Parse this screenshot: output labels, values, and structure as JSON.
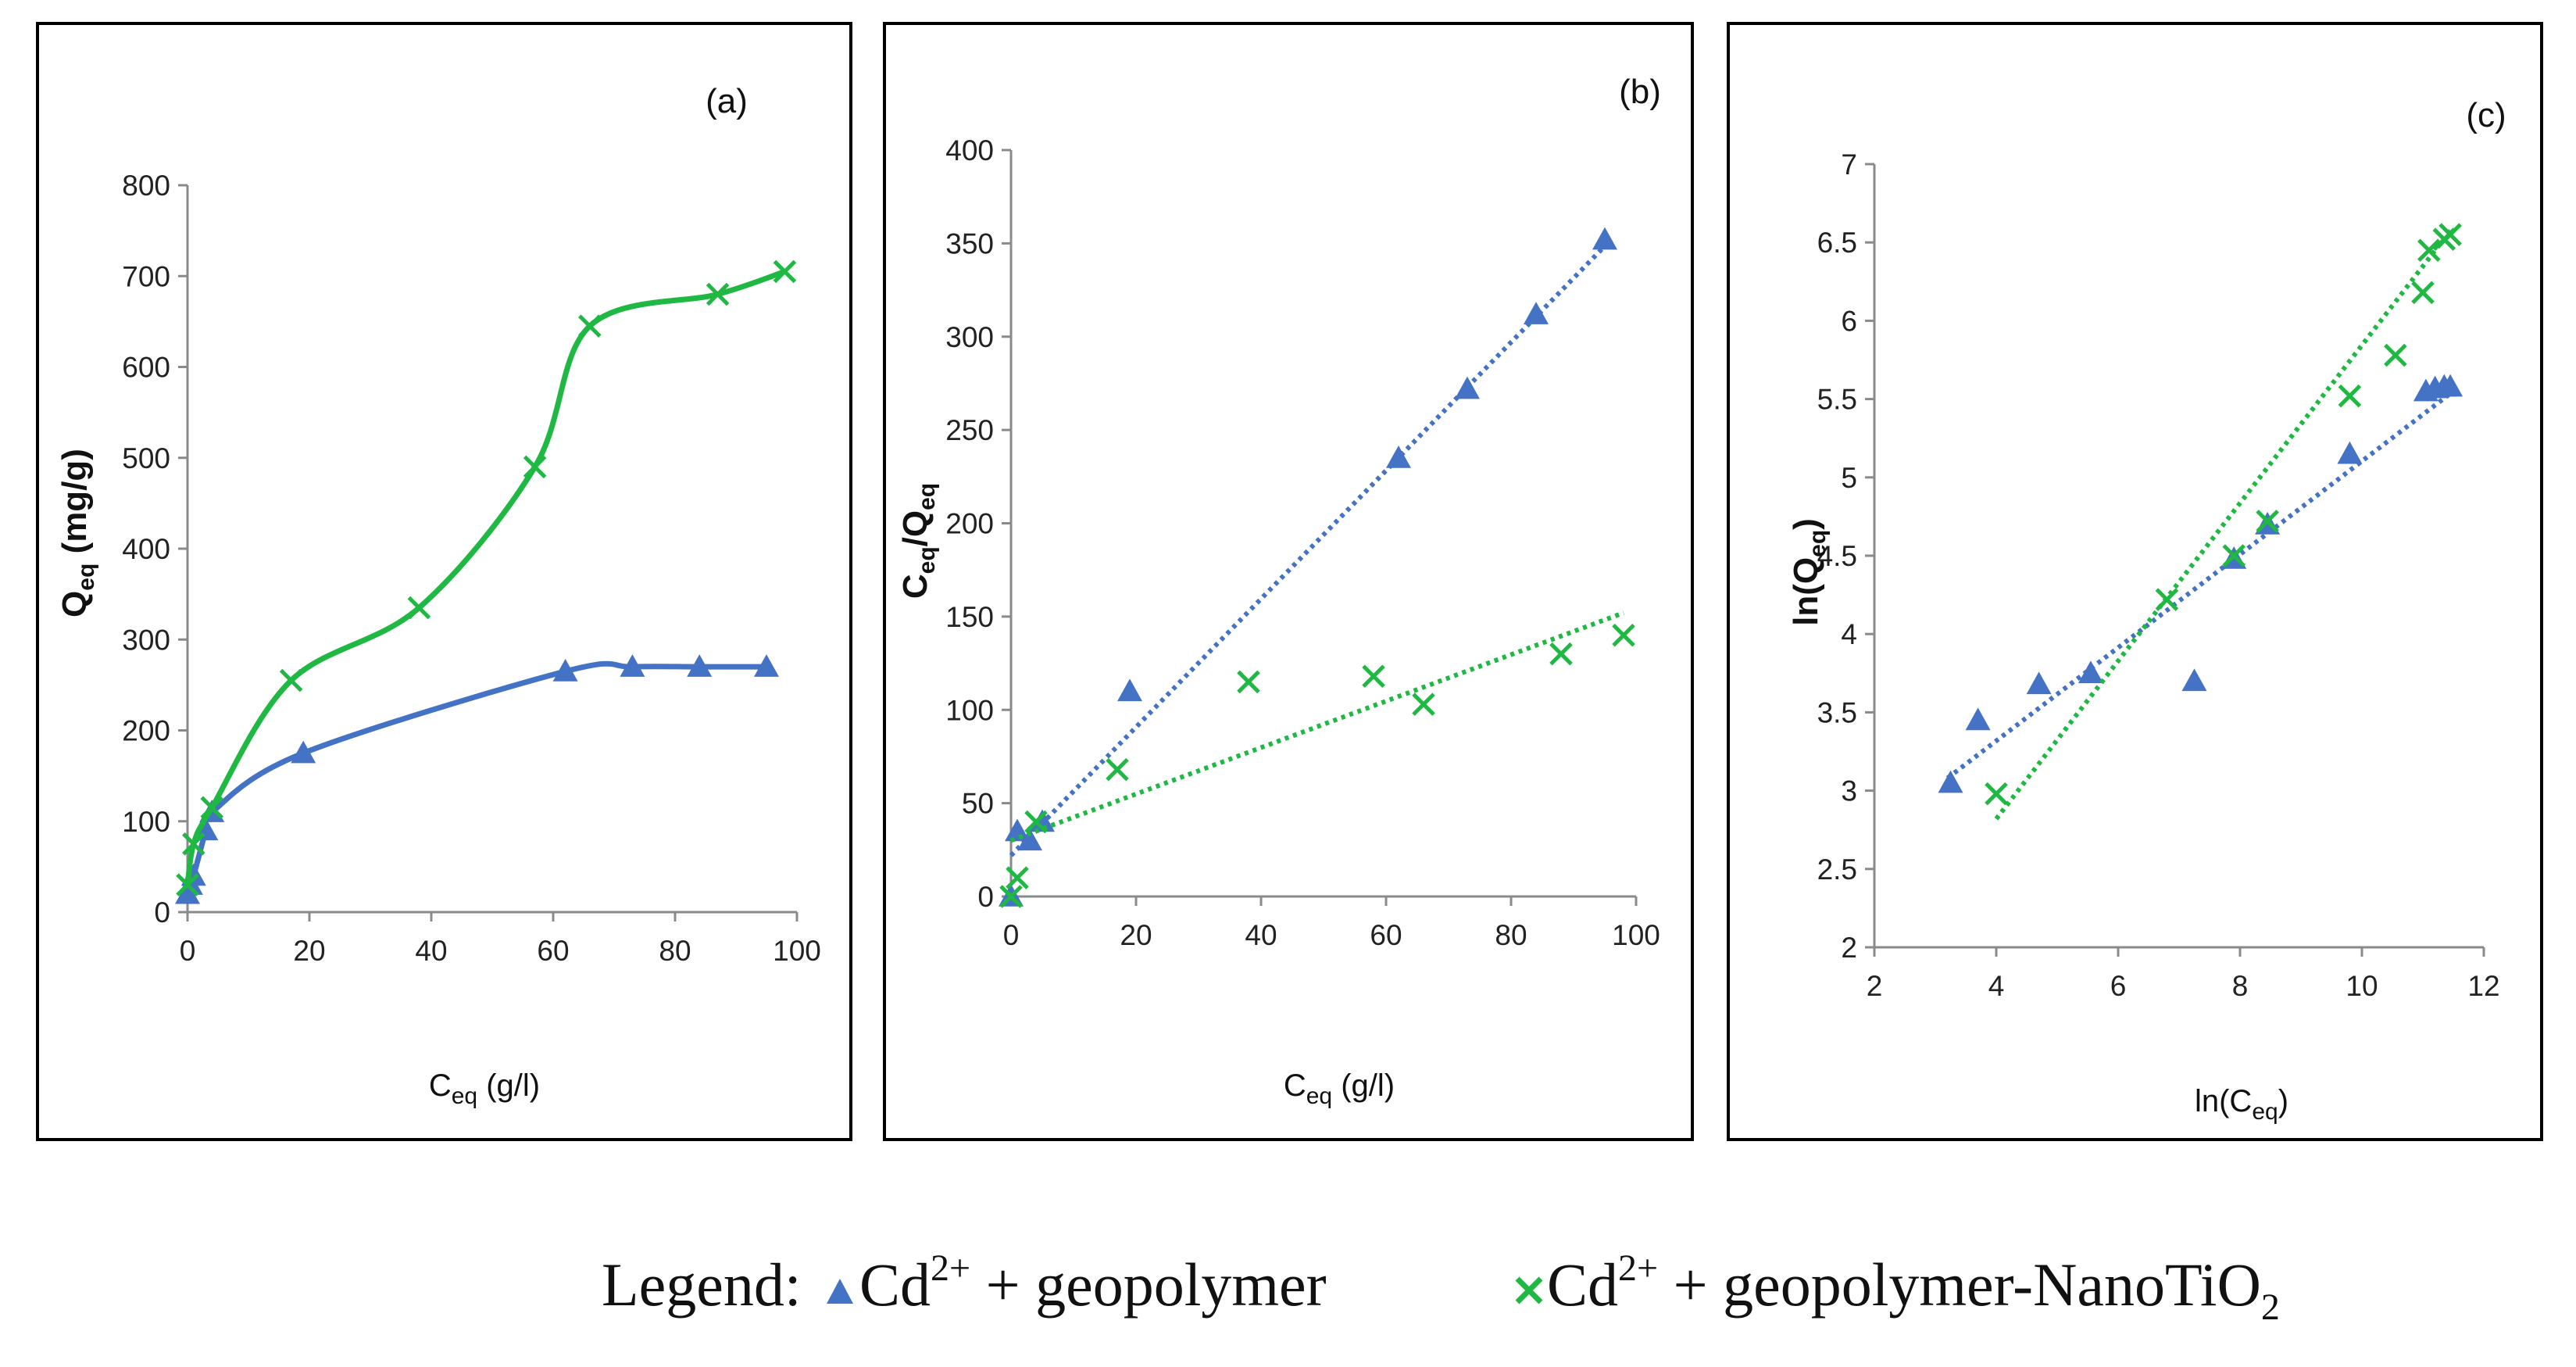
{
  "colors": {
    "series1": "#4472c4",
    "series2": "#1fb843"
  },
  "legend": {
    "title": "Legend:",
    "s1_main": "Cd",
    "s1_sup": "2+",
    "s1_rest": " + geopolymer",
    "s2_main": "Cd",
    "s2_sup": "2+",
    "s2_rest": " + geopolymer-NanoTiO",
    "s2_sub": "2"
  },
  "chart_data": [
    {
      "type": "line",
      "panel_label": "(a)",
      "xlabel_main": "C",
      "xlabel_sub": "eq",
      "xlabel_rest": " (g/l)",
      "ylabel_main": "Q",
      "ylabel_sub": "eq",
      "ylabel_rest": " (mg/g)",
      "xlim": [
        0,
        100
      ],
      "ylim": [
        0,
        800
      ],
      "xticks": [
        0,
        20,
        40,
        60,
        80,
        100
      ],
      "yticks": [
        0,
        100,
        200,
        300,
        400,
        500,
        600,
        700,
        800
      ],
      "series": [
        {
          "name": "Cd2+ + geopolymer",
          "marker": "triangle",
          "color": "#4472c4",
          "x": [
            0,
            0.5,
            1,
            3,
            4,
            19,
            62,
            73,
            84,
            95
          ],
          "y": [
            20,
            30,
            40,
            90,
            110,
            175,
            265,
            270,
            270,
            270
          ]
        },
        {
          "name": "Cd2+ + geopolymer-NanoTiO2",
          "marker": "x",
          "color": "#1fb843",
          "x": [
            0,
            1,
            4,
            17,
            38,
            57,
            66,
            87,
            98
          ],
          "y": [
            30,
            75,
            115,
            255,
            335,
            490,
            645,
            680,
            705
          ]
        }
      ],
      "curve_style": "smooth"
    },
    {
      "type": "scatter",
      "panel_label": "(b)",
      "xlabel_main": "C",
      "xlabel_sub": "eq",
      "xlabel_rest": " (g/l)",
      "ylabel_main": "C",
      "ylabel_sub": "eq",
      "ylabel_mid": "/Q",
      "ylabel_sub2": "eq",
      "xlim": [
        0,
        100
      ],
      "ylim": [
        0,
        400
      ],
      "xticks": [
        0,
        20,
        40,
        60,
        80,
        100
      ],
      "yticks": [
        0,
        50,
        100,
        150,
        200,
        250,
        300,
        350,
        400
      ],
      "series": [
        {
          "name": "Cd2+ + geopolymer",
          "marker": "triangle",
          "color": "#4472c4",
          "x": [
            0,
            1,
            3,
            5,
            19,
            62,
            73,
            84,
            95
          ],
          "y": [
            0,
            35,
            30,
            40,
            110,
            235,
            272,
            312,
            352
          ],
          "trend": [
            [
              0,
              22
            ],
            [
              96,
              352
            ]
          ]
        },
        {
          "name": "Cd2+ + geopolymer-NanoTiO2",
          "marker": "x",
          "color": "#1fb843",
          "x": [
            0,
            1,
            4,
            17,
            38,
            58,
            66,
            88,
            98
          ],
          "y": [
            0,
            10,
            40,
            68,
            115,
            118,
            103,
            130,
            140
          ],
          "trend": [
            [
              0,
              30
            ],
            [
              98,
              152
            ]
          ]
        }
      ]
    },
    {
      "type": "scatter",
      "panel_label": "(c)",
      "xlabel_main": "ln(C",
      "xlabel_sub": "eq",
      "xlabel_rest": ")",
      "ylabel_main": "ln(Q",
      "ylabel_sub": "eq",
      "ylabel_rest": ")",
      "xlim": [
        2,
        12
      ],
      "ylim": [
        2,
        7
      ],
      "xticks": [
        2,
        4,
        6,
        8,
        10,
        12
      ],
      "yticks": [
        2,
        2.5,
        3,
        3.5,
        4,
        4.5,
        5,
        5.5,
        6,
        6.5,
        7
      ],
      "series": [
        {
          "name": "Cd2+ + geopolymer",
          "marker": "triangle",
          "color": "#4472c4",
          "x": [
            3.25,
            3.7,
            4.7,
            5.55,
            7.25,
            7.9,
            8.45,
            9.8,
            11.05,
            11.2,
            11.35,
            11.45
          ],
          "y": [
            3.05,
            3.45,
            3.68,
            3.75,
            3.7,
            4.48,
            4.7,
            5.15,
            5.55,
            5.57,
            5.58,
            5.58
          ],
          "trend": [
            [
              3.2,
              3.08
            ],
            [
              11.5,
              5.55
            ]
          ]
        },
        {
          "name": "Cd2+ + geopolymer-NanoTiO2",
          "marker": "x",
          "color": "#1fb843",
          "x": [
            4.0,
            6.8,
            7.9,
            8.45,
            9.8,
            10.55,
            11.0,
            11.1,
            11.35,
            11.45
          ],
          "y": [
            2.98,
            4.22,
            4.5,
            4.72,
            5.52,
            5.78,
            6.18,
            6.45,
            6.52,
            6.55
          ],
          "trend": [
            [
              4.0,
              2.82
            ],
            [
              11.5,
              6.6
            ]
          ]
        }
      ]
    }
  ]
}
